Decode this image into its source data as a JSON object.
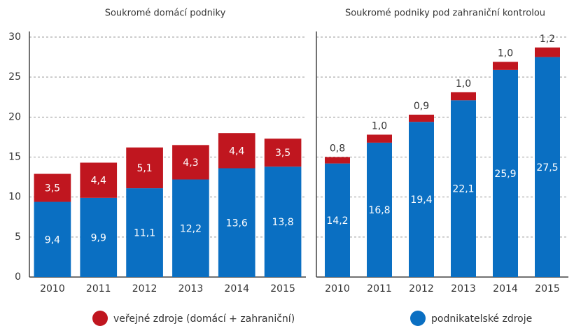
{
  "chart_data": [
    {
      "type": "stacked_bar",
      "title": "Soukromé domácí podniky",
      "categories": [
        "2010",
        "2011",
        "2012",
        "2013",
        "2014",
        "2015"
      ],
      "series": [
        {
          "name": "podnikatelské zdroje",
          "color": "#0a6fc2",
          "values": [
            9.4,
            9.9,
            11.1,
            12.2,
            13.6,
            13.8
          ],
          "value_labels": [
            "9,4",
            "9,9",
            "11,1",
            "12,2",
            "13,6",
            "13,8"
          ]
        },
        {
          "name": "veřejné zdroje (domácí + zahraniční)",
          "color": "#c0161f",
          "values": [
            3.5,
            4.4,
            5.1,
            4.3,
            4.4,
            3.5
          ],
          "value_labels": [
            "3,5",
            "4,4",
            "5,1",
            "4,3",
            "4,4",
            "3,5"
          ]
        }
      ],
      "ylim": [
        0,
        30
      ],
      "yticks": [
        0,
        5,
        10,
        15,
        20,
        25,
        30
      ],
      "grid": true
    },
    {
      "type": "stacked_bar",
      "title": "Soukromé podniky pod zahraniční kontrolou",
      "categories": [
        "2010",
        "2011",
        "2012",
        "2013",
        "2014",
        "2015"
      ],
      "series": [
        {
          "color": "#0a6fc2",
          "values": [
            14.2,
            16.8,
            19.4,
            22.1,
            25.9,
            27.5
          ],
          "value_labels": [
            "14,2",
            "16,8",
            "19,4",
            "22,1",
            "25,9",
            "27,5"
          ]
        },
        {
          "color": "#c0161f",
          "values": [
            0.8,
            1.0,
            0.9,
            1.0,
            1.0,
            1.2
          ],
          "value_labels": [
            "0,8",
            "1,0",
            "0,9",
            "1,0",
            "1,0",
            "1,2"
          ]
        }
      ],
      "ylim": [
        0,
        30
      ],
      "yticks": [
        0,
        5,
        10,
        15,
        20,
        25,
        30
      ],
      "grid": true
    }
  ]
}
